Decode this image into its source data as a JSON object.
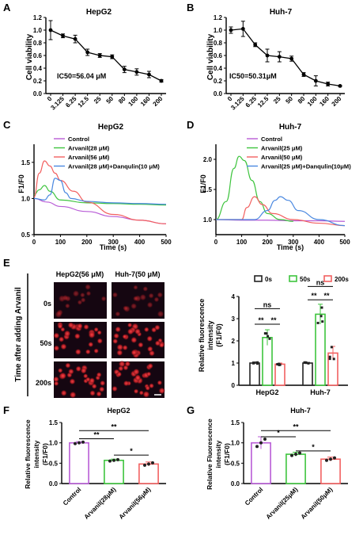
{
  "chart_data": [
    {
      "panel": "A",
      "type": "line",
      "title": "HepG2",
      "ylabel": "Cell viability",
      "ylim": [
        0,
        1.2
      ],
      "yticks": [
        "0.0",
        "0.2",
        "0.4",
        "0.6",
        "0.8",
        "1.0",
        "1.2"
      ],
      "categories": [
        "0",
        "3.125",
        "6.25",
        "12.5",
        "25",
        "50",
        "80",
        "100",
        "160",
        "200"
      ],
      "values": [
        1.0,
        0.91,
        0.86,
        0.65,
        0.6,
        0.58,
        0.38,
        0.34,
        0.3,
        0.2
      ],
      "errors": [
        0.15,
        0.03,
        0.06,
        0.05,
        0.03,
        0.03,
        0.05,
        0.05,
        0.05,
        0.02
      ],
      "annotation": "IC50=56.04 μM"
    },
    {
      "panel": "B",
      "type": "line",
      "title": "Huh-7",
      "ylabel": "Cell viability",
      "ylim": [
        0,
        1.2
      ],
      "yticks": [
        "0.0",
        "0.2",
        "0.4",
        "0.6",
        "0.8",
        "1.0",
        "1.2"
      ],
      "categories": [
        "0",
        "3.125",
        "6.25",
        "12.5",
        "25",
        "50",
        "80",
        "100",
        "160",
        "200"
      ],
      "values": [
        1.0,
        1.02,
        0.77,
        0.6,
        0.58,
        0.55,
        0.3,
        0.2,
        0.15,
        0.12
      ],
      "errors": [
        0.05,
        0.12,
        0.03,
        0.1,
        0.08,
        0.04,
        0.03,
        0.08,
        0.03,
        0.01
      ],
      "annotation": "IC50=50.31μM"
    },
    {
      "panel": "C",
      "type": "line",
      "title": "HepG2",
      "xlabel": "Time (s)",
      "ylabel": "F1/F0",
      "xlim": [
        0,
        500
      ],
      "ylim": [
        0.5,
        1.75
      ],
      "xticks": [
        "0",
        "100",
        "200",
        "300",
        "400",
        "500"
      ],
      "yticks": [
        "0.5",
        "1.0",
        "1.5"
      ],
      "series": [
        {
          "name": "Control",
          "color": "#b85cd6",
          "x": [
            0,
            50,
            100,
            200,
            300,
            400,
            500
          ],
          "y": [
            1.0,
            0.95,
            0.89,
            0.82,
            0.75,
            0.7,
            0.65
          ]
        },
        {
          "name": "Arvanil(28 μM)",
          "color": "#3ec43e",
          "x": [
            0,
            20,
            40,
            60,
            100,
            200,
            300,
            400,
            500
          ],
          "y": [
            1.05,
            1.12,
            1.18,
            1.1,
            0.98,
            0.94,
            0.93,
            0.92,
            0.91
          ]
        },
        {
          "name": "Arvanil(56 μM)",
          "color": "#f26060",
          "x": [
            0,
            20,
            40,
            60,
            80,
            100,
            150,
            200,
            300,
            400,
            500
          ],
          "y": [
            1.02,
            1.35,
            1.52,
            1.45,
            1.35,
            1.25,
            1.1,
            0.95,
            0.78,
            0.7,
            0.65
          ]
        },
        {
          "name": "Arvanil(28 μM)+Danqulin(10 μM)",
          "color": "#4a88e0",
          "x": [
            0,
            40,
            60,
            80,
            100,
            120,
            140,
            200,
            300,
            400,
            500
          ],
          "y": [
            1.0,
            0.98,
            1.05,
            1.28,
            1.25,
            1.08,
            1.0,
            0.96,
            0.94,
            0.93,
            0.92
          ]
        }
      ]
    },
    {
      "panel": "D",
      "type": "line",
      "title": "Huh-7",
      "xlabel": "Time (s)",
      "ylabel": "F1/F0",
      "xlim": [
        0,
        500
      ],
      "ylim": [
        0.75,
        2.25
      ],
      "xticks": [
        "0",
        "100",
        "200",
        "300",
        "400",
        "500"
      ],
      "yticks": [
        "1.0",
        "1.5",
        "2.0"
      ],
      "series": [
        {
          "name": "Control",
          "color": "#b85cd6",
          "x": [
            0,
            100,
            200,
            300,
            400,
            500
          ],
          "y": [
            1.0,
            0.99,
            0.99,
            0.98,
            0.98,
            0.97
          ]
        },
        {
          "name": "Arvanil(25 μM)",
          "color": "#3ec43e",
          "x": [
            0,
            40,
            70,
            90,
            110,
            140,
            170,
            200,
            250,
            300
          ],
          "y": [
            1.0,
            1.3,
            1.85,
            2.05,
            1.98,
            1.65,
            1.3,
            1.1,
            1.0,
            0.97
          ]
        },
        {
          "name": "Arvanil(50 μM)",
          "color": "#f26060",
          "x": [
            0,
            100,
            120,
            150,
            180,
            220,
            300,
            400,
            500
          ],
          "y": [
            1.0,
            1.0,
            1.2,
            1.38,
            1.25,
            1.1,
            1.0,
            0.94,
            0.9
          ]
        },
        {
          "name": "Arvanil(25 μM)+Danqulin(10μM)",
          "color": "#4a88e0",
          "x": [
            0,
            150,
            200,
            230,
            250,
            280,
            320,
            400,
            500
          ],
          "y": [
            1.0,
            1.0,
            1.15,
            1.32,
            1.38,
            1.32,
            1.15,
            1.0,
            0.9
          ]
        }
      ]
    },
    {
      "panel": "E",
      "type": "bar",
      "ylabel": "Relative fluorescence intensity (F1/F0)",
      "ylim": [
        0,
        4
      ],
      "yticks": [
        "0",
        "1",
        "2",
        "3",
        "4"
      ],
      "categories": [
        "HepG2",
        "Huh-7"
      ],
      "series": [
        {
          "name": "0s",
          "color": "#222222",
          "values": [
            1.0,
            1.0
          ],
          "errors": [
            0.05,
            0.03
          ]
        },
        {
          "name": "50s",
          "color": "#3ec43e",
          "values": [
            2.15,
            3.2
          ],
          "errors": [
            0.35,
            0.45
          ]
        },
        {
          "name": "200s",
          "color": "#f26060",
          "values": [
            0.95,
            1.45
          ],
          "errors": [
            0.05,
            0.3
          ]
        }
      ],
      "significance": [
        "**",
        "**",
        "ns",
        "**",
        "**",
        "ns"
      ]
    },
    {
      "panel": "F",
      "type": "bar",
      "title": "HepG2",
      "ylabel": "Relative fluorescence intensity (F1/F0)",
      "ylim": [
        0,
        1.5
      ],
      "yticks": [
        "0.0",
        "0.5",
        "1.0",
        "1.5"
      ],
      "categories": [
        "Control",
        "Arvanil(28μM)",
        "Arvanil(56μM)"
      ],
      "colors": [
        "#b85cd6",
        "#3ec43e",
        "#f26060"
      ],
      "values": [
        1.0,
        0.57,
        0.48
      ],
      "errors": [
        0.03,
        0.03,
        0.05
      ],
      "significance": [
        "**",
        "**",
        "*"
      ]
    },
    {
      "panel": "G",
      "type": "bar",
      "title": "Huh-7",
      "ylabel": "Relative Fluorescence intensity (F1/F0)",
      "ylim": [
        0,
        1.5
      ],
      "yticks": [
        "0.0",
        "0.5",
        "1.0",
        "1.5"
      ],
      "categories": [
        "Control",
        "Arvanil(25μM)",
        "Arvanil(50μM)"
      ],
      "colors": [
        "#b85cd6",
        "#3ec43e",
        "#f26060"
      ],
      "values": [
        1.0,
        0.72,
        0.6
      ],
      "errors": [
        0.15,
        0.05,
        0.05
      ],
      "significance": [
        "*",
        "**",
        "*"
      ]
    }
  ],
  "panel_letters": [
    "A",
    "B",
    "C",
    "D",
    "E",
    "F",
    "G"
  ],
  "images": {
    "ylabel": "Time after adding Arvanil",
    "col1": "HepG2(56 μM)",
    "col2": "Huh-7(50 μM)",
    "rows": [
      "0s",
      "50s",
      "200s"
    ]
  }
}
